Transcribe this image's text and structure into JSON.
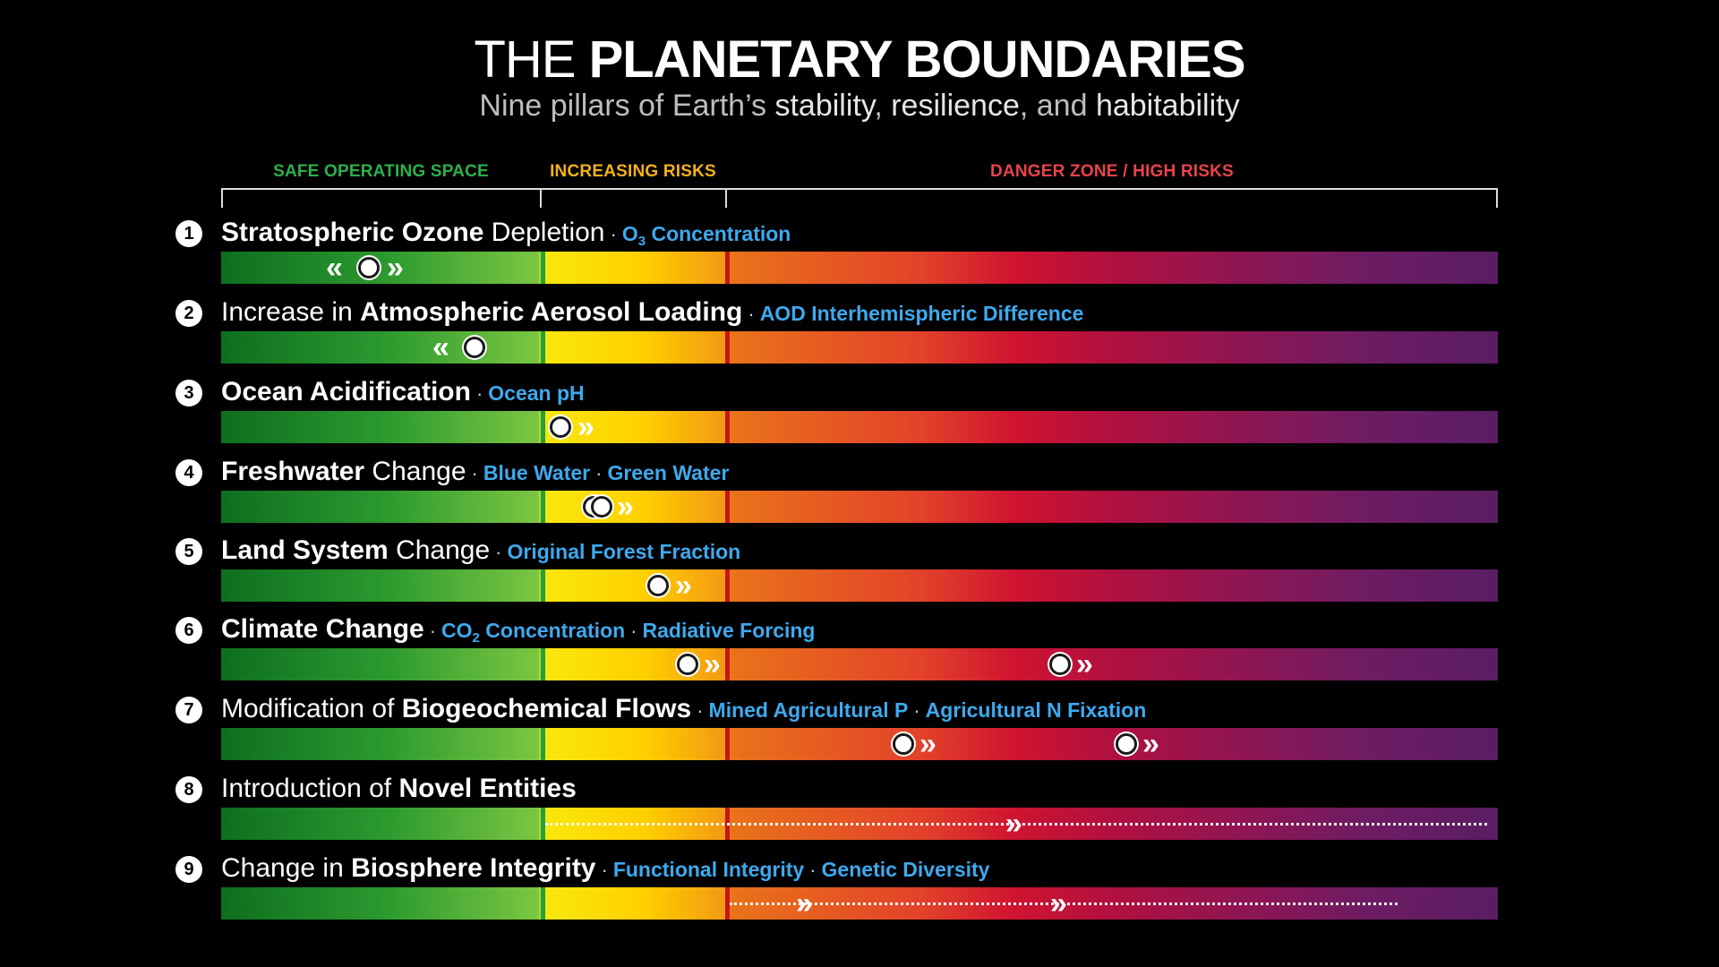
{
  "title": {
    "light": "THE ",
    "bold": "PLANETARY BOUNDARIES"
  },
  "subtitle": {
    "p1": "Nine pillars of Earth’s ",
    "w1": "stability",
    "p2": ", ",
    "w2": "resilience",
    "p3": ", and ",
    "w3": "habitability"
  },
  "zones": {
    "safe": {
      "label": "SAFE OPERATING SPACE",
      "color": "#2db04b"
    },
    "increasing": {
      "label": "INCREASING RISKS",
      "color": "#f6b21b"
    },
    "danger": {
      "label": "DANGER ZONE / HIGH RISKS",
      "color": "#e8434a"
    }
  },
  "colors": {
    "indicator": "#3ea9ee"
  },
  "boundaries": [
    {
      "n": "1",
      "bold": "Stratospheric Ozone",
      "normal": " Depletion",
      "sep": "·",
      "ind1": "O",
      "ind1_sub": "3",
      "ind1_rest": " Concentration",
      "status": "safe, improving"
    },
    {
      "n": "2",
      "normal_pre": "Increase in ",
      "bold": "Atmospheric Aerosol Loading",
      "sep": "·",
      "ind1": "AOD Interhemispheric Difference",
      "status": "safe, improving"
    },
    {
      "n": "3",
      "bold": "Ocean Acidification",
      "sep": "·",
      "ind1": "Ocean pH",
      "status": "increasing risk, worsening"
    },
    {
      "n": "4",
      "bold": "Freshwater",
      "normal": " Change",
      "sep": "·",
      "ind1": "Blue Water",
      "ind2": "Green Water",
      "status": "increasing risk, worsening"
    },
    {
      "n": "5",
      "bold": "Land System",
      "normal": " Change",
      "sep": "·",
      "ind1": "Original Forest Fraction",
      "status": "increasing risk, worsening"
    },
    {
      "n": "6",
      "bold": "Climate Change",
      "sep": "·",
      "ind1": "CO",
      "ind1_sub": "2",
      "ind1_rest": " Concentration",
      "ind2": "Radiative Forcing",
      "status": "high risk, worsening"
    },
    {
      "n": "7",
      "normal_pre": "Modification of ",
      "bold": "Biogeochemical Flows",
      "sep": "·",
      "ind1": "Mined Agricultural P",
      "ind2": "Agricultural N Fixation",
      "status": "high risk, worsening"
    },
    {
      "n": "8",
      "normal_pre": "Introduction of ",
      "bold": "Novel Entities",
      "status": "high risk, worsening"
    },
    {
      "n": "9",
      "normal_pre": "Change in ",
      "bold": "Biosphere Integrity",
      "sep": "·",
      "ind1": "Functional Integrity",
      "ind2": "Genetic Diversity",
      "status": "high risk, worsening"
    }
  ]
}
